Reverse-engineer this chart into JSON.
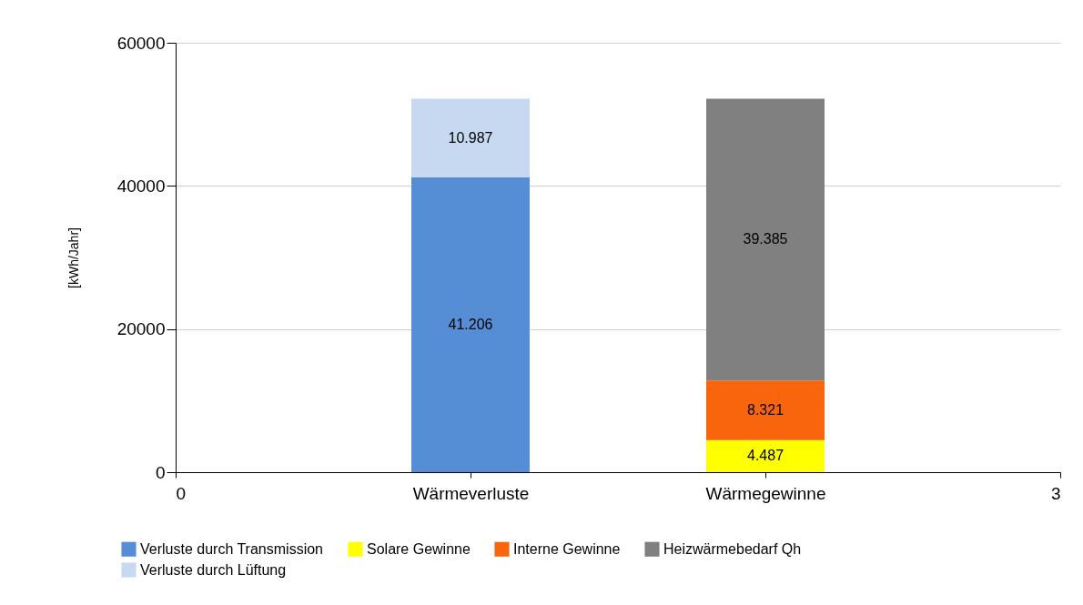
{
  "chart_data": {
    "type": "bar",
    "stacked": true,
    "ylabel": "[kWh/Jahr]",
    "x": [
      1,
      2
    ],
    "xlim": [
      0,
      3
    ],
    "xticks": [
      0,
      {
        "value": 1,
        "label": "Wärmeverluste"
      },
      {
        "value": 2,
        "label": "Wärmegewinne"
      },
      3
    ],
    "ylim": [
      0,
      60000
    ],
    "yticks": [
      0,
      20000,
      40000,
      60000
    ],
    "grid": "y",
    "legend": "bottom",
    "series": [
      {
        "name": "Verluste durch Transmission",
        "color": "#558ed5",
        "values": [
          41206,
          null
        ],
        "value_labels": [
          "41.206",
          null
        ]
      },
      {
        "name": "Solare Gewinne",
        "color": "#ffff00",
        "values": [
          null,
          4487
        ],
        "value_labels": [
          null,
          "4.487"
        ]
      },
      {
        "name": "Interne Gewinne",
        "color": "#f9650c",
        "values": [
          null,
          8321
        ],
        "value_labels": [
          null,
          "8.321"
        ]
      },
      {
        "name": "Heizwärmebedarf Qh",
        "color": "#808080",
        "values": [
          null,
          39385
        ],
        "value_labels": [
          null,
          "39.385"
        ]
      },
      {
        "name": "Verluste durch Lüftung",
        "color": "#c6d9f1",
        "values": [
          10987,
          null
        ],
        "value_labels": [
          "10.987",
          null
        ]
      }
    ]
  }
}
